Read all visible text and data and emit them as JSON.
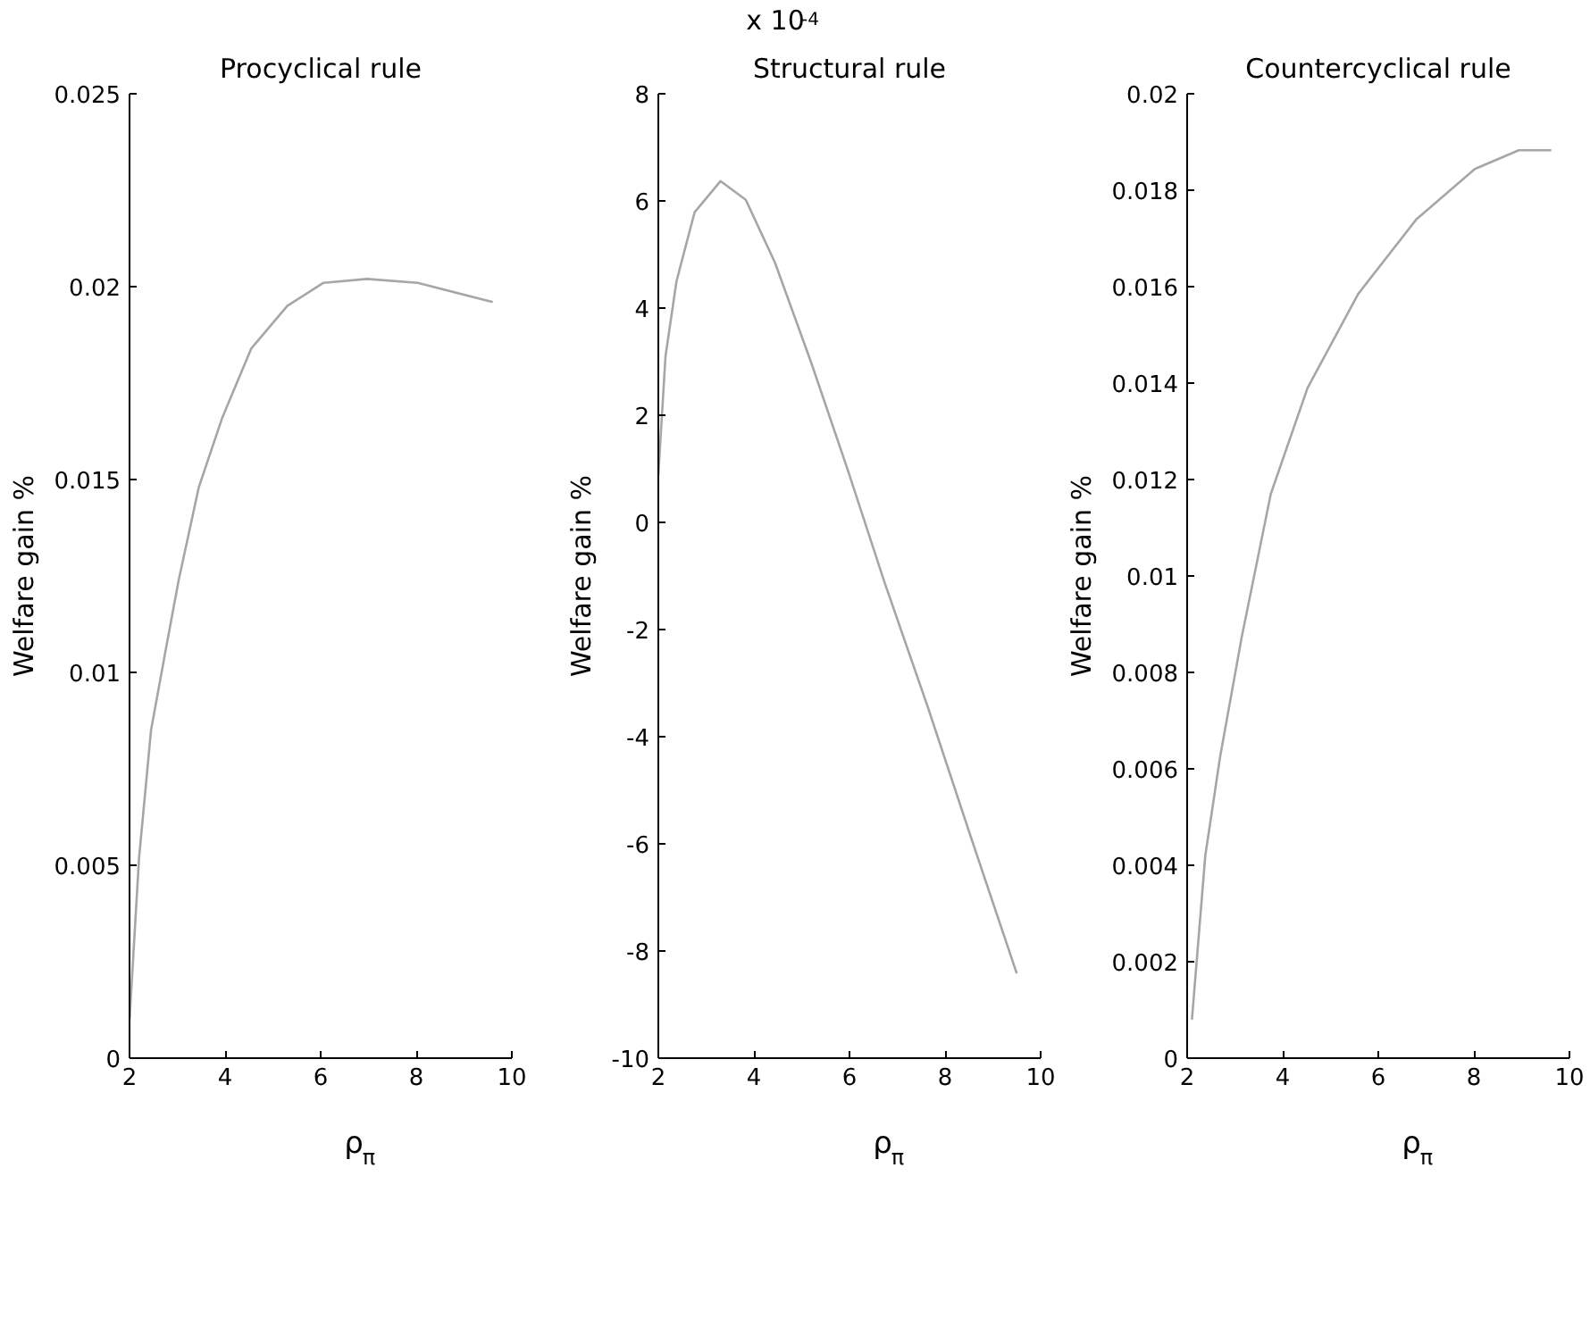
{
  "chart_data": [
    {
      "type": "line",
      "title": "Procyclical rule",
      "xlabel": "ρ$_{π}$",
      "ylabel": "Welfare gain %",
      "xlim": [
        2,
        10
      ],
      "xticks": [
        2,
        4,
        6,
        8,
        10
      ],
      "ylim": [
        0,
        0.025
      ],
      "yticks": [
        0,
        0.005,
        0.01,
        0.015,
        0.02,
        0.025
      ],
      "grid": false,
      "series": [
        {
          "color": "#a6a6a6",
          "x": [
            2,
            2.2,
            2.45,
            2.73,
            3.03,
            3.45,
            3.94,
            4.55,
            5.3,
            6.06,
            6.97,
            8.03,
            9.6
          ],
          "values": [
            0.001,
            0.0052,
            0.0085,
            0.0104,
            0.0124,
            0.0148,
            0.0166,
            0.0184,
            0.0195,
            0.0201,
            0.0202,
            0.0201,
            0.0196
          ]
        }
      ]
    },
    {
      "type": "line",
      "title": "Structural rule",
      "xlabel": "ρ$_{π}$",
      "ylabel": "Welfare gain %",
      "annotations": [
        "x 10$^{-4}$"
      ],
      "xlim": [
        2,
        10
      ],
      "xticks": [
        2,
        4,
        6,
        8,
        10
      ],
      "ylim": [
        -10,
        8
      ],
      "yticks": [
        -10,
        -8,
        -6,
        -4,
        -2,
        0,
        2,
        4,
        6,
        8
      ],
      "grid": false,
      "series": [
        {
          "color": "#a6a6a6",
          "x": [
            2,
            2.15,
            2.38,
            2.76,
            3.3,
            3.83,
            4.44,
            5.2,
            5.96,
            6.73,
            7.64,
            8.55,
            9.5
          ],
          "values": [
            0.88,
            3.1,
            4.5,
            5.79,
            6.37,
            6.02,
            4.85,
            2.98,
            0.99,
            -1.11,
            -3.45,
            -5.9,
            -8.42
          ]
        }
      ]
    },
    {
      "type": "line",
      "title": "Countercyclical rule",
      "xlabel": "ρ$_{π}$",
      "ylabel": "Welfare gain %",
      "xlim": [
        2,
        10
      ],
      "xticks": [
        2,
        4,
        6,
        8,
        10
      ],
      "ylim": [
        0,
        0.02
      ],
      "yticks": [
        0,
        0.002,
        0.004,
        0.006,
        0.008,
        0.01,
        0.012,
        0.014,
        0.016,
        0.018,
        0.02
      ],
      "grid": false,
      "series": [
        {
          "color": "#a6a6a6",
          "x": [
            2.1,
            2.38,
            2.69,
            3.14,
            3.75,
            4.52,
            5.58,
            6.8,
            8.02,
            8.94,
            9.62
          ],
          "values": [
            0.0008,
            0.0042,
            0.00625,
            0.00872,
            0.0117,
            0.0139,
            0.01585,
            0.0174,
            0.01844,
            0.01883,
            0.01883
          ]
        }
      ]
    }
  ]
}
